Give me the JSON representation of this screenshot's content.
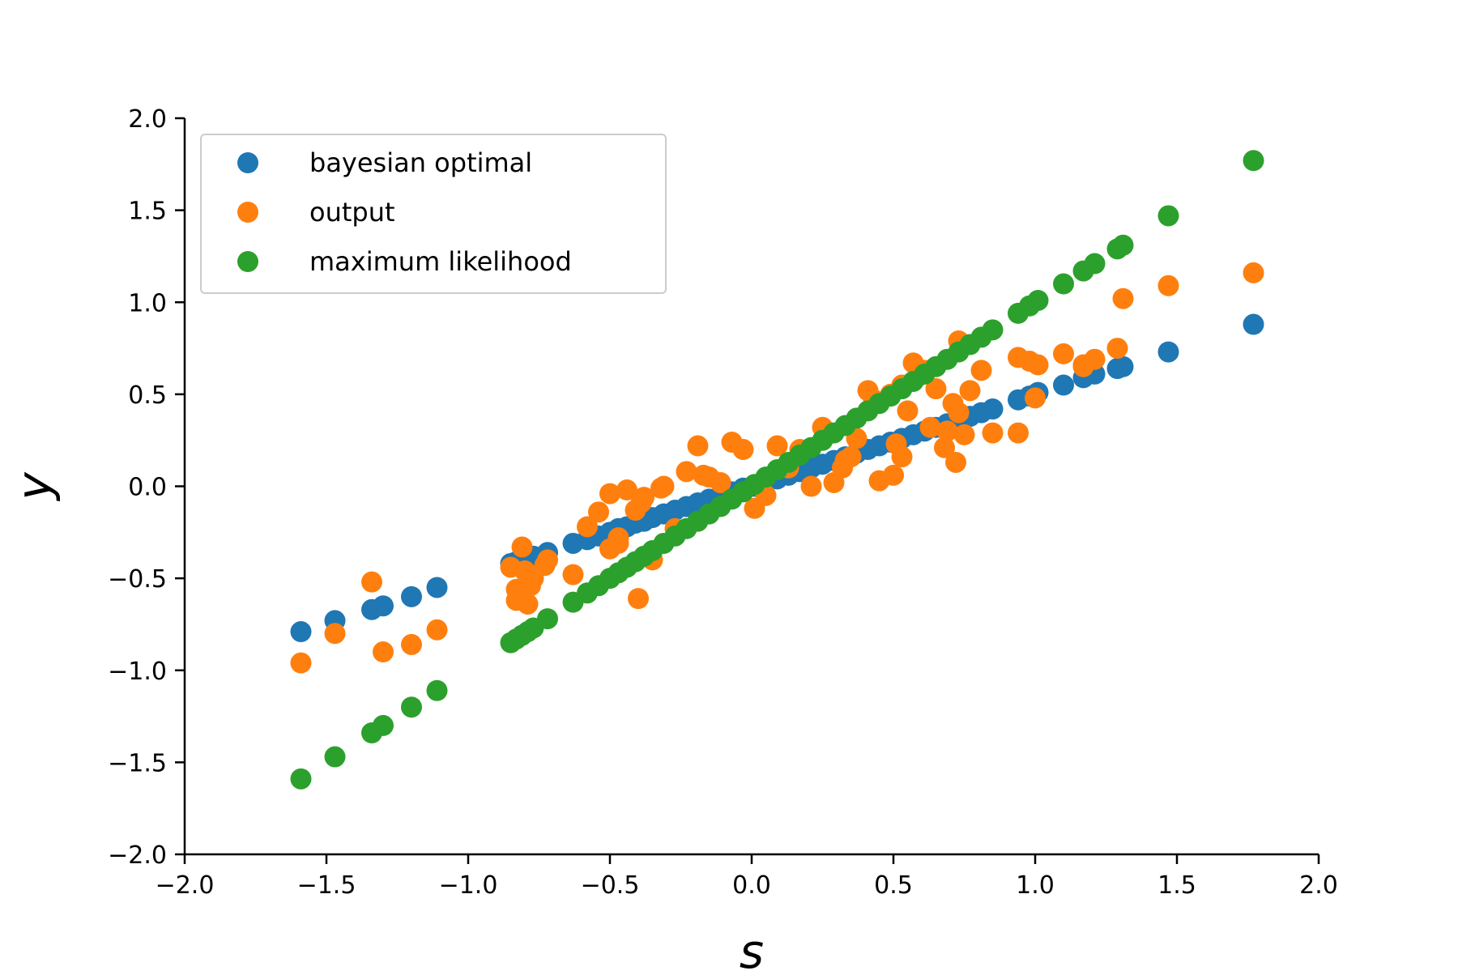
{
  "chart_data": {
    "type": "scatter",
    "title": "",
    "xlabel": "s",
    "ylabel": "y",
    "xlim": [
      -2.0,
      2.0
    ],
    "ylim": [
      -2.0,
      2.0
    ],
    "xticks": [
      -2.0,
      -1.5,
      -1.0,
      -0.5,
      0.0,
      0.5,
      1.0,
      1.5,
      2.0
    ],
    "yticks": [
      -2.0,
      -1.5,
      -1.0,
      -0.5,
      0.0,
      0.5,
      1.0,
      1.5,
      2.0
    ],
    "xtick_labels": [
      "−2.0",
      "−1.5",
      "−1.0",
      "−0.5",
      "0.0",
      "0.5",
      "1.0",
      "1.5",
      "2.0"
    ],
    "ytick_labels": [
      "−2.0",
      "−1.5",
      "−1.0",
      "−0.5",
      "0.0",
      "0.5",
      "1.0",
      "1.5",
      "2.0"
    ],
    "grid": false,
    "legend_position": "top-left",
    "x": [
      -1.59,
      -1.47,
      -1.34,
      -1.3,
      -1.2,
      -1.11,
      -0.85,
      -0.83,
      -0.81,
      -0.79,
      -0.77,
      -0.72,
      -0.63,
      -0.58,
      -0.54,
      -0.5,
      -0.47,
      -0.44,
      -0.41,
      -0.38,
      -0.35,
      -0.31,
      -0.27,
      -0.23,
      -0.19,
      -0.15,
      -0.11,
      -0.07,
      -0.03,
      0.01,
      0.05,
      0.09,
      0.13,
      0.17,
      0.21,
      0.25,
      0.29,
      0.33,
      0.37,
      0.41,
      0.45,
      0.49,
      0.53,
      0.57,
      0.61,
      0.65,
      0.69,
      0.73,
      0.77,
      0.81,
      0.85,
      0.94,
      0.98,
      1.01,
      1.1,
      1.17,
      1.21,
      1.29,
      1.31,
      1.47,
      1.77
    ],
    "series": [
      {
        "name": "bayesian optimal",
        "color": "#1f77b4",
        "y": [
          -0.79,
          -0.73,
          -0.67,
          -0.65,
          -0.6,
          -0.55,
          -0.42,
          -0.41,
          -0.4,
          -0.39,
          -0.38,
          -0.36,
          -0.31,
          -0.29,
          -0.27,
          -0.25,
          -0.23,
          -0.22,
          -0.2,
          -0.19,
          -0.17,
          -0.15,
          -0.13,
          -0.11,
          -0.09,
          -0.07,
          -0.05,
          -0.03,
          -0.01,
          0.0,
          0.02,
          0.04,
          0.06,
          0.08,
          0.1,
          0.12,
          0.14,
          0.16,
          0.18,
          0.2,
          0.22,
          0.24,
          0.26,
          0.28,
          0.3,
          0.32,
          0.34,
          0.36,
          0.38,
          0.4,
          0.42,
          0.47,
          0.49,
          0.51,
          0.55,
          0.59,
          0.61,
          0.64,
          0.65,
          0.73,
          0.88
        ]
      },
      {
        "name": "output",
        "color": "#ff7f0e",
        "y": [
          -0.96,
          -0.8,
          -0.52,
          -0.9,
          -0.86,
          -0.78,
          -0.44,
          -0.56,
          -0.33,
          -0.64,
          -0.5,
          -0.4,
          -0.48,
          -0.22,
          -0.14,
          -0.04,
          -0.28,
          -0.02,
          -0.13,
          -0.06,
          -0.4,
          0.0,
          -0.23,
          0.08,
          0.22,
          0.05,
          0.02,
          0.24,
          0.2,
          -0.12,
          -0.05,
          0.22,
          0.1,
          0.2,
          0.0,
          0.32,
          0.02,
          0.14,
          0.26,
          0.52,
          0.03,
          0.5,
          0.55,
          0.67,
          0.63,
          0.53,
          0.3,
          0.79,
          0.52,
          0.63,
          0.29,
          0.7,
          0.68,
          0.66,
          0.72,
          0.65,
          0.69,
          0.75,
          1.02,
          1.09,
          1.16
        ]
      },
      {
        "name": "maximum likelihood",
        "color": "#2ca02c",
        "y": [
          -1.59,
          -1.47,
          -1.34,
          -1.3,
          -1.2,
          -1.11,
          -0.85,
          -0.83,
          -0.81,
          -0.79,
          -0.77,
          -0.72,
          -0.63,
          -0.58,
          -0.54,
          -0.5,
          -0.47,
          -0.44,
          -0.41,
          -0.38,
          -0.35,
          -0.31,
          -0.27,
          -0.23,
          -0.19,
          -0.15,
          -0.11,
          -0.07,
          -0.03,
          0.01,
          0.05,
          0.09,
          0.13,
          0.17,
          0.21,
          0.25,
          0.29,
          0.33,
          0.37,
          0.41,
          0.45,
          0.49,
          0.53,
          0.57,
          0.61,
          0.65,
          0.69,
          0.73,
          0.77,
          0.81,
          0.85,
          0.94,
          0.98,
          1.01,
          1.1,
          1.17,
          1.21,
          1.29,
          1.31,
          1.47,
          1.77
        ]
      }
    ],
    "extra_output_points": [
      {
        "x": -0.83,
        "y": -0.62
      },
      {
        "x": -0.8,
        "y": -0.46
      },
      {
        "x": -0.78,
        "y": -0.54
      },
      {
        "x": -0.73,
        "y": -0.43
      },
      {
        "x": -0.5,
        "y": -0.34
      },
      {
        "x": -0.47,
        "y": -0.31
      },
      {
        "x": -0.4,
        "y": -0.61
      },
      {
        "x": -0.39,
        "y": -0.09
      },
      {
        "x": -0.32,
        "y": -0.01
      },
      {
        "x": -0.17,
        "y": 0.06
      },
      {
        "x": 0.32,
        "y": 0.1
      },
      {
        "x": 0.35,
        "y": 0.16
      },
      {
        "x": 0.43,
        "y": 0.47
      },
      {
        "x": 0.5,
        "y": 0.06
      },
      {
        "x": 0.51,
        "y": 0.23
      },
      {
        "x": 0.53,
        "y": 0.16
      },
      {
        "x": 0.55,
        "y": 0.41
      },
      {
        "x": 0.59,
        "y": 0.6
      },
      {
        "x": 0.63,
        "y": 0.32
      },
      {
        "x": 0.68,
        "y": 0.21
      },
      {
        "x": 0.71,
        "y": 0.45
      },
      {
        "x": 0.72,
        "y": 0.13
      },
      {
        "x": 0.75,
        "y": 0.28
      },
      {
        "x": 0.73,
        "y": 0.4
      },
      {
        "x": 0.94,
        "y": 0.29
      },
      {
        "x": 1.0,
        "y": 0.48
      },
      {
        "x": 1.17,
        "y": 0.66
      }
    ]
  }
}
